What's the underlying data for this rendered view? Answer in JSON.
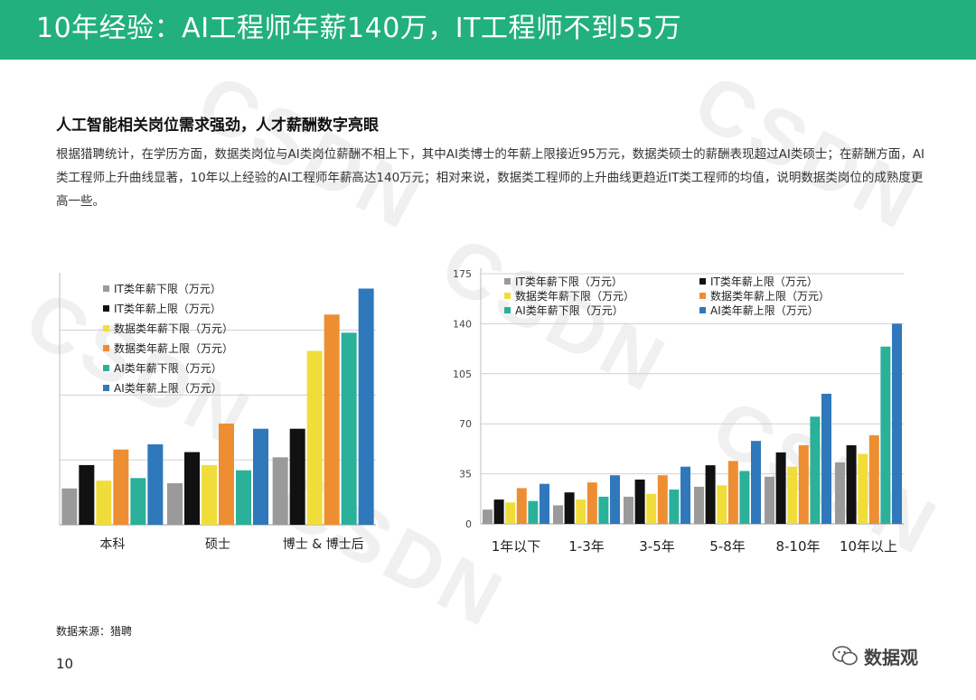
{
  "header": {
    "title": "10年经验：AI工程师年薪140万，IT工程师不到55万"
  },
  "watermark_text": "CSDN",
  "section": {
    "title": "人工智能相关岗位需求强劲，人才薪酬数字亮眼",
    "body": "根据猎聘统计，在学历方面，数据类岗位与AI类岗位薪酬不相上下，其中AI类博士的年薪上限接近95万元，数据类硕士的薪酬表现超过AI类硕士；在薪酬方面，AI类工程师上升曲线显著，10年以上经验的AI工程师年薪高达140万元；相对来说，数据类工程师的上升曲线更趋近IT类工程师的均值，说明数据类岗位的成熟度更高一些。"
  },
  "footer": {
    "source": "数据来源：猎聘",
    "page_number": "10",
    "logo_text": "数据观"
  },
  "colors": {
    "header_bg": "#22b07d",
    "series": [
      "#9a9a9a",
      "#111111",
      "#f0dd3a",
      "#ee8e32",
      "#2bb19a",
      "#2f78bb"
    ]
  },
  "chart_data": [
    {
      "type": "bar",
      "categories": [
        "本科",
        "硕士",
        "博士 & 博士后"
      ],
      "series": [
        {
          "name": "IT类年薪下限（万元）",
          "values": [
            14,
            16,
            26
          ]
        },
        {
          "name": "IT类年薪上限（万元）",
          "values": [
            23,
            28,
            37
          ]
        },
        {
          "name": "数据类年薪下限（万元）",
          "values": [
            17,
            23,
            67
          ]
        },
        {
          "name": "数据类年薪上限（万元）",
          "values": [
            29,
            39,
            81
          ]
        },
        {
          "name": "AI类年薪下限（万元）",
          "values": [
            18,
            21,
            74
          ]
        },
        {
          "name": "AI类年薪上限（万元）",
          "values": [
            31,
            37,
            91
          ]
        }
      ],
      "ylim": [
        0,
        95
      ],
      "gridlines": [
        0,
        25,
        50,
        75
      ],
      "show_y_ticks": false,
      "legend": "top-left"
    },
    {
      "type": "bar",
      "categories": [
        "1年以下",
        "1-3年",
        "3-5年",
        "5-8年",
        "8-10年",
        "10年以上"
      ],
      "series": [
        {
          "name": "IT类年薪下限（万元）",
          "values": [
            10,
            13,
            19,
            26,
            33,
            43
          ]
        },
        {
          "name": "IT类年薪上限（万元）",
          "values": [
            17,
            22,
            31,
            41,
            50,
            55
          ]
        },
        {
          "name": "数据类年薪下限（万元）",
          "values": [
            15,
            17,
            21,
            27,
            40,
            49
          ]
        },
        {
          "name": "数据类年薪上限（万元）",
          "values": [
            25,
            29,
            34,
            44,
            55,
            62
          ]
        },
        {
          "name": "AI类年薪下限（万元）",
          "values": [
            16,
            19,
            24,
            37,
            75,
            124
          ]
        },
        {
          "name": "AI类年薪上限（万元）",
          "values": [
            28,
            34,
            40,
            58,
            91,
            140
          ]
        }
      ],
      "ylim": [
        0,
        175
      ],
      "yticks": [
        0,
        35,
        70,
        105,
        140,
        175
      ],
      "legend": "top-left"
    }
  ]
}
